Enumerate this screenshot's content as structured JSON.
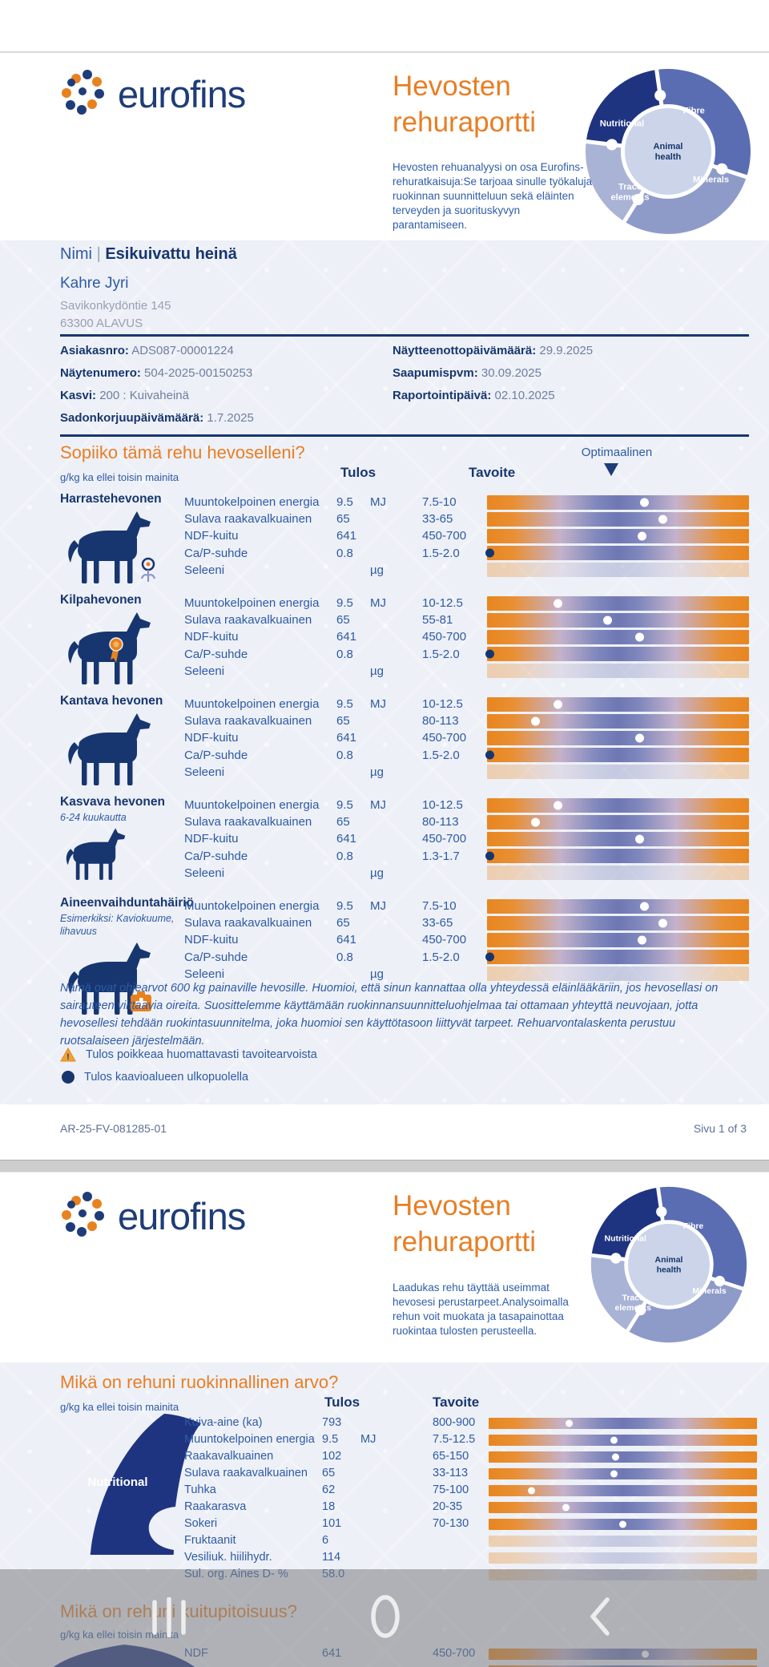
{
  "brand": {
    "logo_text": "eurofins",
    "title_line1": "Hevosten",
    "title_line2": "rehuraportti"
  },
  "wheel": {
    "nutritional": "Nutritional",
    "fibre": "Fibre",
    "minerals": "Minerals",
    "trace1": "Trace",
    "trace2": "elements",
    "center1": "Animal",
    "center2": "health"
  },
  "colors": {
    "navy": "#17366F",
    "blue": "#2E5AA5",
    "orange": "#E8821F",
    "bar_blue": "#6F77B4"
  },
  "page1": {
    "intro": "Hevosten rehuanalyysi on osa Eurofins-rehuratkaisuja:Se tarjoaa sinulle työkaluja ruokinnan suunnitteluun sekä eläinten terveyden ja suorituskyvyn parantamiseen.",
    "recipient": {
      "name_label": "Nimi",
      "divider": "|",
      "feed_name": "Esikuivattu heinä",
      "person": "Kahre Jyri",
      "street": "Savikonkydöntie 145",
      "city": "63300 ALAVUS"
    },
    "info_left": [
      {
        "label": "Asiakasnro:",
        "value": "ADS087-00001224"
      },
      {
        "label": "Näytenumero:",
        "value": "504-2025-00150253"
      },
      {
        "label": "Kasvi:",
        "value": "200 : Kuivaheinä"
      },
      {
        "label": "Sadonkorjuupäivämäärä:",
        "value": "1.7.2025"
      }
    ],
    "info_right": [
      {
        "label": "Näytteenottopäivämäärä:",
        "value": "29.9.2025"
      },
      {
        "label": "Saapumispvm:",
        "value": "30.09.2025"
      },
      {
        "label": "Raportointipäivä:",
        "value": "02.10.2025"
      }
    ],
    "section_title": "Sopiiko tämä rehu hevoselleni?",
    "unit_note": "g/kg ka ellei toisin mainita",
    "col_tulos": "Tulos",
    "col_tavoite": "Tavoite",
    "col_optimal": "Optimaalinen",
    "groups": [
      {
        "name": "Harrastehevonen",
        "subtitle": "",
        "icon": "harraste",
        "rows": [
          {
            "label": "Muuntokelpoinen energia",
            "tulos": "9.5",
            "unit": "MJ",
            "tavoite": "7.5-10",
            "dot": 0.6
          },
          {
            "label": "Sulava raakavalkuainen",
            "tulos": "65",
            "unit": "",
            "tavoite": "33-65",
            "dot": 0.67
          },
          {
            "label": "NDF-kuitu",
            "tulos": "641",
            "unit": "",
            "tavoite": "450-700",
            "dot": 0.59
          },
          {
            "label": "Ca/P-suhde",
            "tulos": "0.8",
            "unit": "",
            "tavoite": "1.5-2.0",
            "dot": 0.01,
            "navy": true
          },
          {
            "label": "Seleeni",
            "tulos": "",
            "unit": "µg",
            "tavoite": "",
            "faded": true
          }
        ]
      },
      {
        "name": "Kilpahevonen",
        "subtitle": "",
        "icon": "kilpa",
        "rows": [
          {
            "label": "Muuntokelpoinen energia",
            "tulos": "9.5",
            "unit": "MJ",
            "tavoite": "10-12.5",
            "dot": 0.27
          },
          {
            "label": "Sulava raakavalkuainen",
            "tulos": "65",
            "unit": "",
            "tavoite": "55-81",
            "dot": 0.46
          },
          {
            "label": "NDF-kuitu",
            "tulos": "641",
            "unit": "",
            "tavoite": "450-700",
            "dot": 0.58
          },
          {
            "label": "Ca/P-suhde",
            "tulos": "0.8",
            "unit": "",
            "tavoite": "1.5-2.0",
            "dot": 0.01,
            "navy": true
          },
          {
            "label": "Seleeni",
            "tulos": "",
            "unit": "µg",
            "tavoite": "",
            "faded": true
          }
        ]
      },
      {
        "name": "Kantava hevonen",
        "subtitle": "",
        "icon": "kantava",
        "rows": [
          {
            "label": "Muuntokelpoinen energia",
            "tulos": "9.5",
            "unit": "MJ",
            "tavoite": "10-12.5",
            "dot": 0.27
          },
          {
            "label": "Sulava raakavalkuainen",
            "tulos": "65",
            "unit": "",
            "tavoite": "80-113",
            "dot": 0.185
          },
          {
            "label": "NDF-kuitu",
            "tulos": "641",
            "unit": "",
            "tavoite": "450-700",
            "dot": 0.58
          },
          {
            "label": "Ca/P-suhde",
            "tulos": "0.8",
            "unit": "",
            "tavoite": "1.5-2.0",
            "dot": 0.01,
            "navy": true
          },
          {
            "label": "Seleeni",
            "tulos": "",
            "unit": "µg",
            "tavoite": "",
            "faded": true
          }
        ]
      },
      {
        "name": "Kasvava hevonen",
        "subtitle": "6-24 kuukautta",
        "icon": "kasvava",
        "rows": [
          {
            "label": "Muuntokelpoinen energia",
            "tulos": "9.5",
            "unit": "MJ",
            "tavoite": "10-12.5",
            "dot": 0.27
          },
          {
            "label": "Sulava raakavalkuainen",
            "tulos": "65",
            "unit": "",
            "tavoite": "80-113",
            "dot": 0.185
          },
          {
            "label": "NDF-kuitu",
            "tulos": "641",
            "unit": "",
            "tavoite": "450-700",
            "dot": 0.58
          },
          {
            "label": "Ca/P-suhde",
            "tulos": "0.8",
            "unit": "",
            "tavoite": "1.3-1.7",
            "dot": 0.01,
            "navy": true
          },
          {
            "label": "Seleeni",
            "tulos": "",
            "unit": "µg",
            "tavoite": "",
            "faded": true
          }
        ]
      },
      {
        "name": "Aineenvaihduntahäiriö",
        "subtitle": "Esimerkiksi: Kaviokuume,\nlihavuus",
        "icon": "aineen",
        "rows": [
          {
            "label": "Muuntokelpoinen energia",
            "tulos": "9.5",
            "unit": "MJ",
            "tavoite": "7.5-10",
            "dot": 0.6
          },
          {
            "label": "Sulava raakavalkuainen",
            "tulos": "65",
            "unit": "",
            "tavoite": "33-65",
            "dot": 0.67
          },
          {
            "label": "NDF-kuitu",
            "tulos": "641",
            "unit": "",
            "tavoite": "450-700",
            "dot": 0.59
          },
          {
            "label": "Ca/P-suhde",
            "tulos": "0.8",
            "unit": "",
            "tavoite": "1.5-2.0",
            "dot": 0.01,
            "navy": true
          },
          {
            "label": "Seleeni",
            "tulos": "",
            "unit": "µg",
            "tavoite": "",
            "faded": true
          }
        ]
      }
    ],
    "disclaimer": "Nämä ovat ohjearvot 600 kg painaville hevosille. Huomioi, että sinun kannattaa olla yhteydessä eläinlääkäriin, jos hevosellasi on sairauteen viittaavia oireita. Suosittelemme käyttämään ruokinnansuunnitteluohjelmaa tai ottamaan yhteyttä neuvojaan, jotta hevosellesi tehdään ruokintasuunnitelma, joka huomioi sen käyttötasoon liittyvät tarpeet. Rehuarvontalaskenta perustuu ruotsalaiseen järjestelmään.",
    "legend_warning": "Tulos poikkeaa huomattavasti tavoitearvoista",
    "legend_outside": "Tulos kaavioalueen ulkopuolella",
    "footer_left": "AR-25-FV-081285-01",
    "footer_right": "Sivu 1 of 3"
  },
  "page2": {
    "intro": "Laadukas rehu täyttää useimmat hevosesi perustarpeet.Analysoimalla rehun voit muokata ja tasapainottaa ruokintaa tulosten perusteella.",
    "section_title": "Mikä on rehuni ruokinnallinen arvo?",
    "unit_note": "g/kg ka ellei toisin mainita",
    "col_tulos": "Tulos",
    "col_tavoite": "Tavoite",
    "puzzle_label": "Nutritional",
    "rows": [
      {
        "label": "Kuiva-aine (ka)",
        "tulos": "793",
        "unit": "",
        "tavoite": "800-900",
        "dot": 0.3
      },
      {
        "label": "Muuntokelpoinen energia",
        "tulos": "9.5",
        "unit": "MJ",
        "tavoite": "7.5-12.5",
        "dot": 0.47
      },
      {
        "label": "Raakavalkuainen",
        "tulos": "102",
        "unit": "",
        "tavoite": "65-150",
        "dot": 0.475
      },
      {
        "label": "Sulava raakavalkuainen",
        "tulos": "65",
        "unit": "",
        "tavoite": "33-113",
        "dot": 0.47
      },
      {
        "label": "Tuhka",
        "tulos": "62",
        "unit": "",
        "tavoite": "75-100",
        "dot": 0.16
      },
      {
        "label": "Raakarasva",
        "tulos": "18",
        "unit": "",
        "tavoite": "20-35",
        "dot": 0.29
      },
      {
        "label": "Sokeri",
        "tulos": "101",
        "unit": "",
        "tavoite": "70-130",
        "dot": 0.5
      },
      {
        "label": "Fruktaanit",
        "tulos": "6",
        "unit": "",
        "tavoite": "",
        "faded": true
      },
      {
        "label": "Vesiliuk. hiilihydr.",
        "tulos": "114",
        "unit": "",
        "tavoite": "",
        "faded": true
      },
      {
        "label": "Sul. org. Aines D- %",
        "tulos": "58.0",
        "unit": "",
        "tavoite": "",
        "faded": true
      }
    ],
    "section2_title": "Mikä on rehuni kuitupitoisuus?",
    "unit_note2": "g/kg ka ellei toisin mainita",
    "rows2": [
      {
        "label": "NDF",
        "tulos": "641",
        "unit": "",
        "tavoite": "450-700",
        "dot": 0.585
      },
      {
        "label": "",
        "tulos": "",
        "unit": "",
        "tavoite": "",
        "dot": null
      }
    ]
  },
  "navbar": {
    "icons": [
      "recents",
      "home",
      "back"
    ]
  }
}
